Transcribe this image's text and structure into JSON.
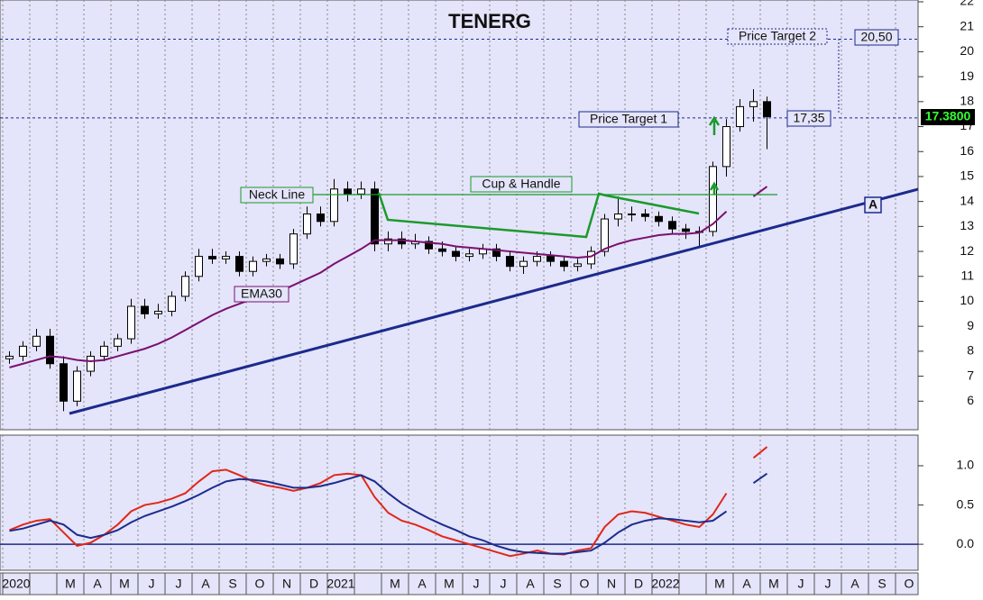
{
  "chart_data": [
    {
      "type": "candlestick",
      "title": "TENERG",
      "categories": [
        "2020",
        null,
        null,
        null,
        "M",
        null,
        "A",
        null,
        "M",
        null,
        "J",
        null,
        "J",
        null,
        "A",
        null,
        "S",
        null,
        "O",
        null,
        "N",
        null,
        "D",
        null,
        "2021",
        null,
        null,
        null,
        "M",
        null,
        "A",
        null,
        "M",
        null,
        "J",
        null,
        "J",
        null,
        "A",
        null,
        "S",
        null,
        "O",
        null,
        "N",
        null,
        "D",
        null,
        "2022",
        null,
        null,
        null,
        "M",
        null,
        "A",
        null,
        "M",
        null,
        "J",
        null,
        "J",
        null,
        "A",
        null,
        "S",
        null,
        "O",
        null
      ],
      "open": [
        7.7,
        7.8,
        8.2,
        8.6,
        7.5,
        6.0,
        7.2,
        7.8,
        8.2,
        8.5,
        9.8,
        9.5,
        9.6,
        10.2,
        11.0,
        11.8,
        11.7,
        11.8,
        11.2,
        11.6,
        11.7,
        11.5,
        12.7,
        13.5,
        13.2,
        14.5,
        14.3,
        14.5,
        12.3,
        12.5,
        12.3,
        12.4,
        12.1,
        12.0,
        11.8,
        11.9,
        12.1,
        11.8,
        11.4,
        11.6,
        11.8,
        11.6,
        11.4,
        11.5,
        12.0,
        13.3,
        13.5,
        13.5,
        13.4,
        13.2,
        12.9,
        12.8,
        12.8,
        15.4,
        17.0,
        17.8,
        18.0,
        null,
        null,
        null,
        null,
        null,
        null,
        null,
        null,
        null,
        null,
        null
      ],
      "high": [
        8.0,
        8.4,
        8.9,
        8.9,
        7.8,
        7.4,
        8.0,
        8.4,
        8.7,
        10.1,
        10.1,
        9.9,
        10.4,
        11.2,
        12.1,
        12.1,
        12.0,
        12.0,
        11.8,
        11.9,
        11.9,
        12.9,
        13.8,
        13.8,
        14.9,
        14.8,
        14.8,
        14.8,
        12.8,
        12.8,
        12.7,
        12.6,
        12.4,
        12.2,
        12.1,
        12.3,
        12.3,
        12.0,
        11.8,
        12.0,
        12.0,
        11.8,
        11.7,
        12.2,
        13.5,
        14.2,
        13.8,
        13.7,
        13.6,
        13.4,
        13.1,
        13.0,
        15.6,
        17.3,
        18.1,
        18.5,
        18.2,
        null,
        null,
        null,
        null,
        null,
        null,
        null,
        null,
        null,
        null,
        null
      ],
      "low": [
        7.5,
        7.6,
        8.0,
        7.3,
        5.6,
        5.8,
        7.0,
        7.6,
        8.0,
        8.3,
        9.3,
        9.3,
        9.4,
        10.0,
        10.8,
        11.5,
        11.5,
        11.0,
        11.0,
        11.4,
        11.3,
        11.3,
        12.5,
        13.0,
        13.0,
        14.0,
        14.1,
        12.0,
        12.0,
        12.1,
        12.1,
        11.9,
        11.8,
        11.6,
        11.6,
        11.7,
        11.6,
        11.2,
        11.1,
        11.4,
        11.4,
        11.2,
        11.2,
        11.3,
        11.8,
        13.0,
        13.2,
        13.2,
        13.0,
        12.7,
        12.5,
        12.2,
        12.6,
        15.0,
        16.8,
        17.2,
        16.1,
        null,
        null,
        null,
        null,
        null,
        null,
        null,
        null,
        null,
        null,
        null
      ],
      "close": [
        7.8,
        8.2,
        8.6,
        7.5,
        6.0,
        7.2,
        7.8,
        8.2,
        8.5,
        9.8,
        9.5,
        9.6,
        10.2,
        11.0,
        11.8,
        11.7,
        11.8,
        11.2,
        11.6,
        11.7,
        11.5,
        12.7,
        13.5,
        13.2,
        14.5,
        14.3,
        14.5,
        12.3,
        12.5,
        12.3,
        12.4,
        12.1,
        12.0,
        11.8,
        11.9,
        12.1,
        11.8,
        11.4,
        11.6,
        11.8,
        11.6,
        11.4,
        11.5,
        12.0,
        13.3,
        13.5,
        13.5,
        13.4,
        13.2,
        12.9,
        12.8,
        12.8,
        15.4,
        17.0,
        17.8,
        18.0,
        17.4,
        null,
        null,
        null,
        null,
        null,
        null,
        null,
        null,
        null,
        null,
        null
      ],
      "up_color": "#ffffff",
      "down_color": "#000000",
      "series": [
        {
          "name": "EMA30",
          "color": "#7a1070",
          "values": [
            7.35,
            7.5,
            7.65,
            7.8,
            7.75,
            7.65,
            7.6,
            7.65,
            7.8,
            7.95,
            8.1,
            8.3,
            8.55,
            8.85,
            9.15,
            9.45,
            9.7,
            9.9,
            10.1,
            10.25,
            10.4,
            10.65,
            10.9,
            11.15,
            11.5,
            11.8,
            12.1,
            12.45,
            12.45,
            12.45,
            12.4,
            12.35,
            12.3,
            12.2,
            12.15,
            12.1,
            12.05,
            12.0,
            11.95,
            11.9,
            11.85,
            11.8,
            11.75,
            11.8,
            12.1,
            12.3,
            12.45,
            12.55,
            12.65,
            12.7,
            12.7,
            12.75,
            13.1,
            13.6,
            null,
            14.2,
            14.6,
            null,
            null,
            null,
            null,
            null,
            null,
            null,
            null,
            null,
            null,
            null
          ]
        }
      ],
      "ylim": [
        5,
        22
      ],
      "yticks": [
        6,
        7,
        8,
        9,
        10,
        11,
        12,
        13,
        14,
        15,
        16,
        17,
        18,
        19,
        20,
        21,
        22
      ],
      "grid": "x",
      "last_price": {
        "value": 17.38,
        "label": "17.3800"
      },
      "annotations": {
        "neck_line": "Neck Line",
        "pattern": "Cup & Handle",
        "trend_line": "A",
        "targets": [
          {
            "text": "Price Target 1",
            "price": {
              "value": 17.35,
              "label": "17,35"
            }
          },
          {
            "text": "Price Target 2",
            "price": {
              "value": 20.5,
              "label": "20,50"
            }
          }
        ]
      }
    },
    {
      "type": "line",
      "series": [
        {
          "color": "#e02818",
          "values": [
            0.18,
            0.25,
            0.3,
            0.32,
            0.15,
            -0.02,
            0.02,
            0.12,
            0.25,
            0.42,
            0.5,
            0.53,
            0.58,
            0.65,
            0.8,
            0.93,
            0.95,
            0.88,
            0.8,
            0.75,
            0.72,
            0.68,
            0.72,
            0.78,
            0.88,
            0.9,
            0.88,
            0.6,
            0.4,
            0.3,
            0.25,
            0.18,
            0.1,
            0.05,
            0.0,
            -0.05,
            -0.1,
            -0.15,
            -0.12,
            -0.08,
            -0.12,
            -0.13,
            -0.08,
            -0.05,
            0.22,
            0.38,
            0.42,
            0.4,
            0.35,
            0.3,
            0.25,
            0.22,
            0.38,
            0.65,
            null,
            1.1,
            1.24,
            null,
            null,
            null,
            null,
            null,
            null,
            null,
            null,
            null,
            null,
            null
          ]
        },
        {
          "color": "#1c2c8c",
          "values": [
            0.17,
            0.2,
            0.25,
            0.3,
            0.25,
            0.12,
            0.08,
            0.12,
            0.18,
            0.28,
            0.36,
            0.42,
            0.48,
            0.55,
            0.63,
            0.72,
            0.8,
            0.83,
            0.82,
            0.8,
            0.76,
            0.72,
            0.72,
            0.74,
            0.78,
            0.83,
            0.88,
            0.8,
            0.65,
            0.52,
            0.42,
            0.33,
            0.25,
            0.18,
            0.1,
            0.05,
            -0.02,
            -0.07,
            -0.1,
            -0.11,
            -0.12,
            -0.12,
            -0.1,
            -0.08,
            0.02,
            0.15,
            0.25,
            0.3,
            0.33,
            0.32,
            0.3,
            0.28,
            0.3,
            0.42,
            null,
            0.78,
            0.9,
            null,
            null,
            null,
            null,
            null,
            null,
            null,
            null,
            null,
            null,
            null
          ]
        }
      ],
      "ylim": [
        -0.32,
        1.39
      ],
      "yticks": [
        {
          "value": 1,
          "label": "1.0"
        },
        {
          "value": 0.5,
          "label": "0.5"
        },
        {
          "value": 0,
          "label": "0.0"
        }
      ],
      "grid": "x"
    }
  ]
}
